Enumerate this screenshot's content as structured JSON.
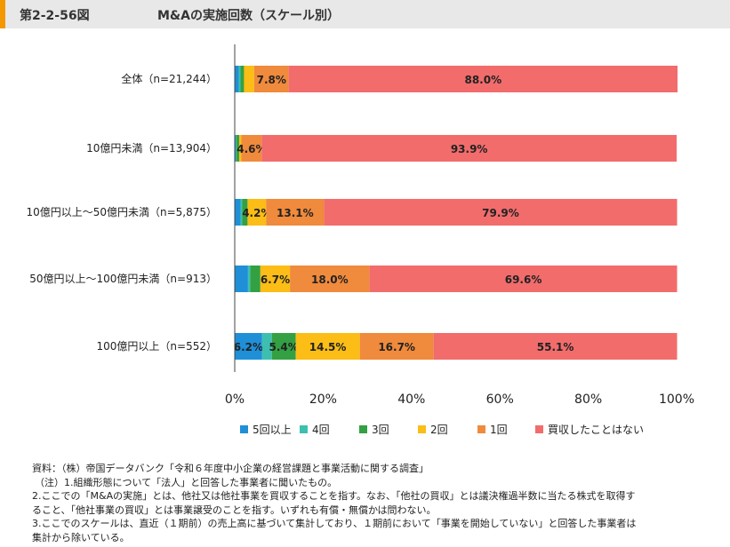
{
  "header": {
    "figure_number": "第2-2-56図",
    "title": "M&Aの実施回数（スケール別）"
  },
  "colors": {
    "header_bg": "#e8e8e8",
    "header_accent": "#f39800",
    "series": [
      "#1f8fd8",
      "#3dbfb0",
      "#33a043",
      "#fbbd16",
      "#f08a3c",
      "#f26c6c"
    ]
  },
  "chart_data": {
    "type": "bar",
    "orientation": "horizontal",
    "stacked": true,
    "categories": [
      "全体（n=21,244）",
      "10億円未満（n=13,904）",
      "10億円以上～50億円未満（n=5,875）",
      "50億円以上～100億円未満（n=913）",
      "100億円以上（n=552）"
    ],
    "series": [
      {
        "name": "5回以上",
        "values": [
          0.9,
          0.2,
          1.3,
          3.0,
          6.2
        ],
        "labels": [
          "",
          "",
          "",
          "",
          "6.2%"
        ]
      },
      {
        "name": "4回",
        "values": [
          0.4,
          0.2,
          0.4,
          0.5,
          2.2
        ],
        "labels": [
          "",
          "",
          "",
          "",
          ""
        ]
      },
      {
        "name": "3回",
        "values": [
          0.8,
          0.6,
          1.2,
          2.3,
          5.4
        ],
        "labels": [
          "",
          "",
          "",
          "",
          "5.4%"
        ]
      },
      {
        "name": "2回",
        "values": [
          2.3,
          0.5,
          4.2,
          6.7,
          14.5
        ],
        "labels": [
          "",
          "",
          "4.2%",
          "6.7%",
          "14.5%"
        ]
      },
      {
        "name": "1回",
        "values": [
          7.8,
          4.6,
          13.1,
          18.0,
          16.7
        ],
        "labels": [
          "7.8%",
          "4.6%",
          "13.1%",
          "18.0%",
          "16.7%"
        ]
      },
      {
        "name": "買収したことはない",
        "values": [
          88.0,
          93.9,
          79.9,
          69.6,
          55.1
        ],
        "labels": [
          "88.0%",
          "93.9%",
          "79.9%",
          "69.6%",
          "55.1%"
        ]
      }
    ],
    "x_ticks": [
      "0%",
      "20%",
      "40%",
      "60%",
      "80%",
      "100%"
    ],
    "xlim": [
      0,
      100
    ],
    "legend_position": "bottom",
    "grid": false
  },
  "notes": [
    "資料：（株）帝国データバンク「令和６年度中小企業の経営課題と事業活動に関する調査」",
    "（注）1.組織形態について「法人」と回答した事業者に聞いたもの。",
    "2.ここでの「M&Aの実施」とは、他社又は他社事業を買収することを指す。なお、「他社の買収」とは議決権過半数に当たる株式を取得す",
    "ること、「他社事業の買収」とは事業譲受のことを指す。いずれも有償・無償かは問わない。",
    "3.ここでのスケールは、直近（１期前）の売上高に基づいて集計しており、１期前において「事業を開始していない」と回答した事業者は",
    "集計から除いている。"
  ]
}
